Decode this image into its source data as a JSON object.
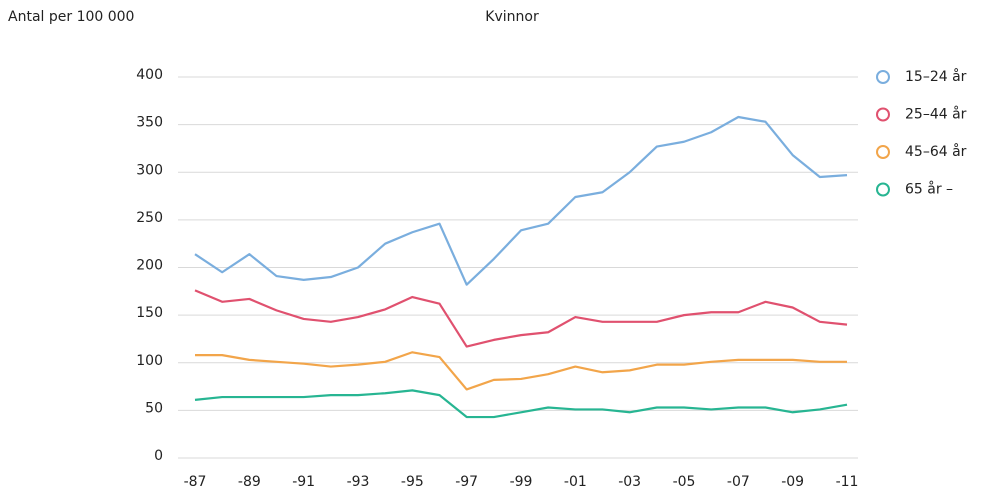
{
  "chart_data": {
    "type": "line",
    "title": "Kvinnor",
    "y_label": "Antal per 100 000",
    "categories": [
      "-87",
      null,
      "-89",
      null,
      "-91",
      null,
      "-93",
      null,
      "-95",
      null,
      "-97",
      null,
      "-99",
      null,
      "-01",
      null,
      "-03",
      null,
      "-05",
      null,
      "-07",
      null,
      "-09",
      null,
      "-11"
    ],
    "series": [
      {
        "name": "15–24 år",
        "color": "#7aaede",
        "values": [
          214,
          195,
          214,
          191,
          187,
          190,
          200,
          225,
          237,
          246,
          182,
          209,
          239,
          246,
          274,
          279,
          300,
          327,
          332,
          342,
          358,
          353,
          318,
          295,
          297
        ]
      },
      {
        "name": "25–44 år",
        "color": "#e0516f",
        "values": [
          176,
          164,
          167,
          155,
          146,
          143,
          148,
          156,
          169,
          162,
          117,
          124,
          129,
          132,
          148,
          143,
          143,
          143,
          150,
          153,
          153,
          164,
          158,
          143,
          140
        ]
      },
      {
        "name": "45–64 år",
        "color": "#f2a54a",
        "values": [
          108,
          108,
          103,
          101,
          99,
          96,
          98,
          101,
          111,
          106,
          72,
          82,
          83,
          88,
          96,
          90,
          92,
          98,
          98,
          101,
          103,
          103,
          103,
          101,
          101
        ]
      },
      {
        "name": "65 år –",
        "color": "#27b592",
        "values": [
          61,
          64,
          64,
          64,
          64,
          66,
          66,
          68,
          71,
          66,
          43,
          43,
          48,
          53,
          51,
          51,
          48,
          53,
          53,
          51,
          53,
          53,
          48,
          51,
          56
        ]
      }
    ],
    "ylim": [
      0,
      400
    ],
    "yticks": [
      0,
      50,
      100,
      150,
      200,
      250,
      300,
      350,
      400
    ],
    "grid": true,
    "legend": "right"
  }
}
